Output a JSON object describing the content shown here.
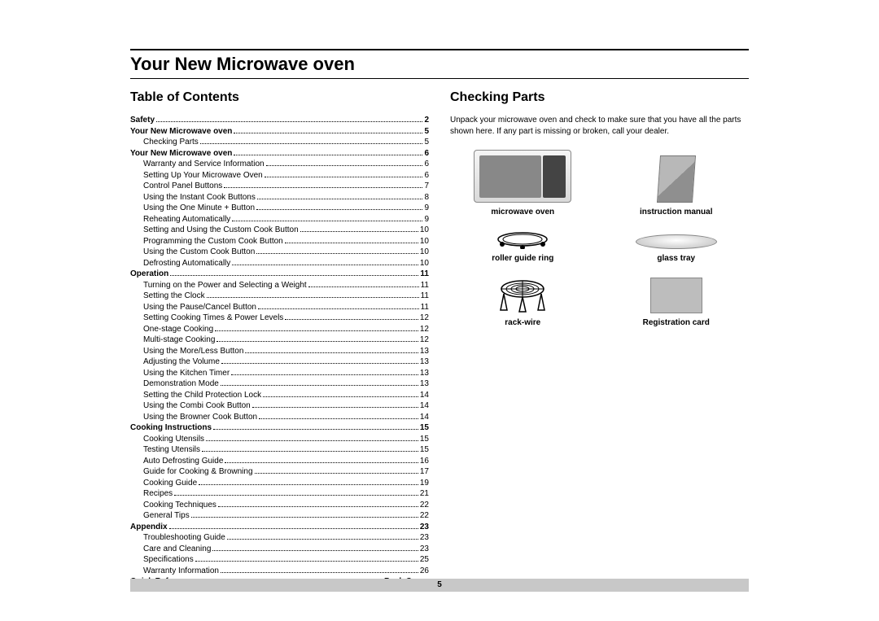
{
  "page": {
    "title": "Your New Microwave oven",
    "page_number": "5"
  },
  "left": {
    "heading": "Table of Contents",
    "toc": [
      {
        "label": "Safety",
        "page": "2",
        "bold": true,
        "indent": 0
      },
      {
        "label": "Your New Microwave oven",
        "page": "5",
        "bold": true,
        "indent": 0
      },
      {
        "label": "Checking Parts",
        "page": "5",
        "bold": false,
        "indent": 1
      },
      {
        "label": "Your New Microwave oven",
        "page": "6",
        "bold": true,
        "indent": 0
      },
      {
        "label": "Warranty and Service Information",
        "page": "6",
        "bold": false,
        "indent": 1
      },
      {
        "label": "Setting Up Your Microwave Oven",
        "page": "6",
        "bold": false,
        "indent": 1
      },
      {
        "label": "Control Panel Buttons",
        "page": "7",
        "bold": false,
        "indent": 1
      },
      {
        "label": "Using the Instant Cook Buttons",
        "page": "8",
        "bold": false,
        "indent": 1
      },
      {
        "label": "Using the One Minute + Button",
        "page": "9",
        "bold": false,
        "indent": 1
      },
      {
        "label": "Reheating Automatically",
        "page": "9",
        "bold": false,
        "indent": 1
      },
      {
        "label": "Setting and Using the Custom Cook Button",
        "page": "10",
        "bold": false,
        "indent": 1
      },
      {
        "label": "Programming the Custom Cook Button",
        "page": "10",
        "bold": false,
        "indent": 1
      },
      {
        "label": "Using the Custom Cook Button",
        "page": "10",
        "bold": false,
        "indent": 1
      },
      {
        "label": "Defrosting Automatically",
        "page": "10",
        "bold": false,
        "indent": 1
      },
      {
        "label": "Operation",
        "page": "11",
        "bold": true,
        "indent": 0
      },
      {
        "label": "Turning on the Power and Selecting a Weight",
        "page": "11",
        "bold": false,
        "indent": 1
      },
      {
        "label": "Setting the Clock",
        "page": "11",
        "bold": false,
        "indent": 1
      },
      {
        "label": "Using the Pause/Cancel Button",
        "page": "11",
        "bold": false,
        "indent": 1
      },
      {
        "label": "Setting Cooking Times & Power Levels",
        "page": "12",
        "bold": false,
        "indent": 1
      },
      {
        "label": "One-stage Cooking",
        "page": "12",
        "bold": false,
        "indent": 1
      },
      {
        "label": "Multi-stage Cooking",
        "page": "12",
        "bold": false,
        "indent": 1
      },
      {
        "label": "Using the More/Less Button",
        "page": "13",
        "bold": false,
        "indent": 1
      },
      {
        "label": "Adjusting the Volume",
        "page": "13",
        "bold": false,
        "indent": 1
      },
      {
        "label": "Using the Kitchen Timer",
        "page": "13",
        "bold": false,
        "indent": 1
      },
      {
        "label": "Demonstration Mode",
        "page": "13",
        "bold": false,
        "indent": 1
      },
      {
        "label": "Setting the Child Protection Lock",
        "page": "14",
        "bold": false,
        "indent": 1
      },
      {
        "label": "Using the Combi Cook Button",
        "page": "14",
        "bold": false,
        "indent": 1
      },
      {
        "label": "Using the Browner Cook Button",
        "page": "14",
        "bold": false,
        "indent": 1
      },
      {
        "label": "Cooking Instructions",
        "page": "15",
        "bold": true,
        "indent": 0
      },
      {
        "label": "Cooking Utensils",
        "page": "15",
        "bold": false,
        "indent": 1
      },
      {
        "label": "Testing Utensils",
        "page": "15",
        "bold": false,
        "indent": 1
      },
      {
        "label": "Auto Defrosting Guide",
        "page": "16",
        "bold": false,
        "indent": 1
      },
      {
        "label": "Guide for Cooking & Browning",
        "page": "17",
        "bold": false,
        "indent": 1
      },
      {
        "label": "Cooking Guide",
        "page": "19",
        "bold": false,
        "indent": 1
      },
      {
        "label": "Recipes",
        "page": "21",
        "bold": false,
        "indent": 1
      },
      {
        "label": "Cooking Techniques",
        "page": "22",
        "bold": false,
        "indent": 1
      },
      {
        "label": "General Tips",
        "page": "22",
        "bold": false,
        "indent": 1
      },
      {
        "label": "Appendix",
        "page": "23",
        "bold": true,
        "indent": 0
      },
      {
        "label": "Troubleshooting Guide",
        "page": "23",
        "bold": false,
        "indent": 1
      },
      {
        "label": "Care and Cleaning",
        "page": "23",
        "bold": false,
        "indent": 1
      },
      {
        "label": "Specifications",
        "page": "25",
        "bold": false,
        "indent": 1
      },
      {
        "label": "Warranty Information",
        "page": "26",
        "bold": false,
        "indent": 1
      },
      {
        "label": "Quick Reference",
        "page": "Back Cover",
        "bold": true,
        "indent": 0
      }
    ]
  },
  "right": {
    "heading": "Checking Parts",
    "intro": "Unpack your microwave oven and check to make sure that you have all the parts shown here. If any part is missing or broken, call your dealer.",
    "parts": {
      "microwave": "microwave oven",
      "manual": "instruction manual",
      "ring": "roller guide ring",
      "tray": "glass tray",
      "rack": "rack-wire",
      "regcard": "Registration card"
    }
  }
}
